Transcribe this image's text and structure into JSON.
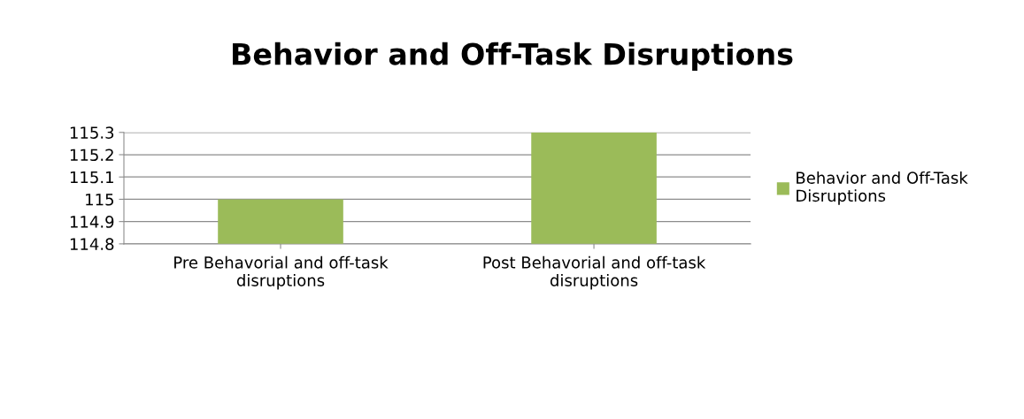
{
  "chart_data": {
    "type": "bar",
    "title": "Behavior and Off-Task Disruptions",
    "categories": [
      "Pre Behavorial and off-task disruptions",
      "Post Behavorial and off-task disruptions"
    ],
    "series": [
      {
        "name": "Behavior and Off-Task Disruptions",
        "color": "#9bbb59",
        "values": [
          115,
          115.3
        ]
      }
    ],
    "ylim": [
      114.8,
      115.3
    ],
    "yticks": [
      114.8,
      114.9,
      115,
      115.1,
      115.2,
      115.3
    ],
    "grid": "y",
    "legend": "right"
  }
}
